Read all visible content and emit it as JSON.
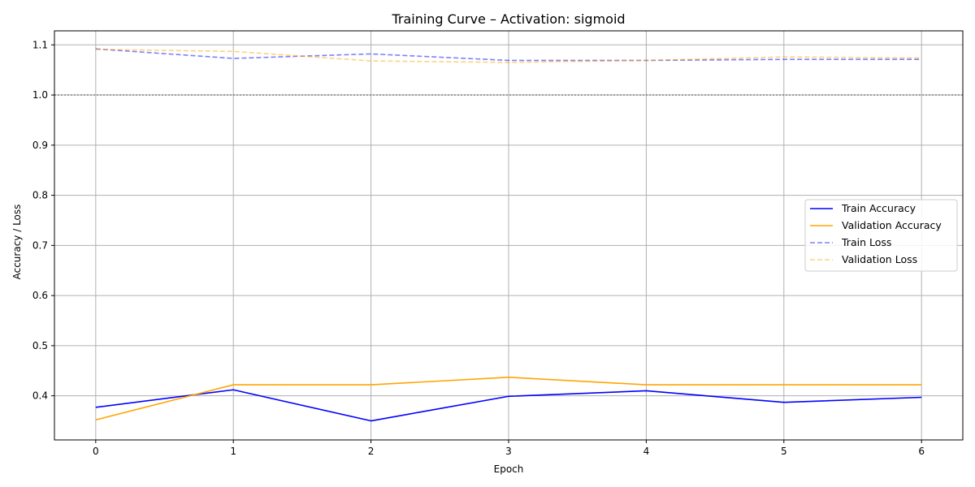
{
  "chart_data": {
    "type": "line",
    "title": "Training Curve – Activation: sigmoid",
    "xlabel": "Epoch",
    "ylabel": "Accuracy / Loss",
    "x": [
      0,
      1,
      2,
      3,
      4,
      5,
      6
    ],
    "xlim": [
      -0.3,
      6.3
    ],
    "ylim": [
      0.312,
      1.128
    ],
    "xticks": [
      "0",
      "1",
      "2",
      "3",
      "4",
      "5",
      "6"
    ],
    "yticks": [
      "0.4",
      "0.5",
      "0.6",
      "0.7",
      "0.8",
      "0.9",
      "1.0",
      "1.1"
    ],
    "grid": true,
    "legend_position": "center-right",
    "reference_line": {
      "y": 1.0,
      "style": "dotted",
      "color": "#808080"
    },
    "series": [
      {
        "name": "Train Accuracy",
        "color": "#0000ff",
        "style": "solid",
        "opacity": 1.0,
        "values": [
          0.377,
          0.412,
          0.35,
          0.399,
          0.41,
          0.387,
          0.397
        ]
      },
      {
        "name": "Validation Accuracy",
        "color": "#ffa500",
        "style": "solid",
        "opacity": 1.0,
        "values": [
          0.352,
          0.422,
          0.422,
          0.437,
          0.422,
          0.422,
          0.422
        ]
      },
      {
        "name": "Train Loss",
        "color": "#0000ff",
        "style": "dashed",
        "opacity": 0.5,
        "values": [
          1.092,
          1.073,
          1.082,
          1.069,
          1.069,
          1.071,
          1.071
        ]
      },
      {
        "name": "Validation Loss",
        "color": "#ffa500",
        "style": "dashed",
        "opacity": 0.5,
        "values": [
          1.091,
          1.087,
          1.068,
          1.065,
          1.069,
          1.076,
          1.074
        ]
      }
    ]
  }
}
